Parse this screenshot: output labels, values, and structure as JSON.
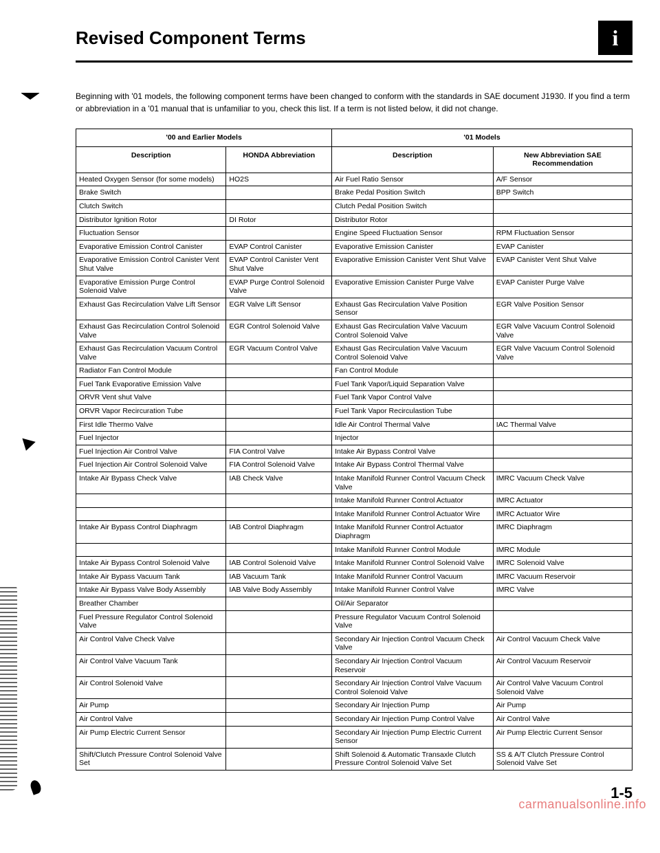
{
  "title": "Revised Component Terms",
  "intro": "Beginning with '01 models, the following component terms have been changed to conform with the standards in SAE document J1930. If you find a term or abbreviation in a '01 manual that is unfamiliar to you, check this list. If a term is not listed below, it did not change.",
  "headers": {
    "group_old": "'00 and Earlier Models",
    "group_new": "'01 Models",
    "old_desc": "Description",
    "old_abbr": "HONDA Abbreviation",
    "new_desc": "Description",
    "new_abbr": "New Abbreviation SAE Recommendation"
  },
  "rows": [
    {
      "a": "Heated Oxygen Sensor (for some models)",
      "b": "HO2S",
      "c": "Air Fuel Ratio Sensor",
      "d": "A/F Sensor"
    },
    {
      "a": "Brake Switch",
      "b": "",
      "c": "Brake Pedal Position Switch",
      "d": "BPP Switch"
    },
    {
      "a": "Clutch Switch",
      "b": "",
      "c": "Clutch Pedal Position Switch",
      "d": ""
    },
    {
      "a": "Distributor Ignition Rotor",
      "b": "DI Rotor",
      "c": "Distributor Rotor",
      "d": ""
    },
    {
      "a": "Fluctuation Sensor",
      "b": "",
      "c": "Engine Speed Fluctuation Sensor",
      "d": "RPM Fluctuation Sensor"
    },
    {
      "a": "Evaporative Emission Control Canister",
      "b": "EVAP Control Canister",
      "c": "Evaporative Emission Canister",
      "d": "EVAP Canister"
    },
    {
      "a": "Evaporative Emission Control Canister Vent Shut Valve",
      "b": "EVAP Control Canister Vent Shut Valve",
      "c": "Evaporative Emission Canister Vent Shut Valve",
      "d": "EVAP Canister Vent Shut Valve"
    },
    {
      "a": "Evaporative Emission Purge Control Solenoid Valve",
      "b": "EVAP Purge Control Solenoid Valve",
      "c": "Evaporative Emission Canister Purge Valve",
      "d": "EVAP Canister Purge Valve"
    },
    {
      "a": "Exhaust Gas Recirculation Valve Lift Sensor",
      "b": "EGR Valve Lift Sensor",
      "c": "Exhaust Gas Recirculation Valve Position Sensor",
      "d": "EGR Valve Position Sensor"
    },
    {
      "a": "Exhaust Gas Recirculation Control Solenoid Valve",
      "b": "EGR Control Solenoid Valve",
      "c": "Exhaust Gas Recirculation Valve Vacuum Control Solenoid Valve",
      "d": "EGR Valve Vacuum Control Solenoid Valve"
    },
    {
      "a": "Exhaust Gas Recirculation Vacuum Control Valve",
      "b": "EGR Vacuum Control Valve",
      "c": "Exhaust Gas Recirculation Valve Vacuum Control Solenoid Valve",
      "d": "EGR Valve Vacuum Control Solenoid Valve"
    },
    {
      "a": "Radiator Fan Control Module",
      "b": "",
      "c": "Fan Control Module",
      "d": ""
    },
    {
      "a": "Fuel Tank Evaporative Emission Valve",
      "b": "",
      "c": "Fuel Tank Vapor/Liquid Separation Valve",
      "d": ""
    },
    {
      "a": "ORVR Vent shut Valve",
      "b": "",
      "c": "Fuel Tank Vapor Control Valve",
      "d": ""
    },
    {
      "a": "ORVR Vapor Recircuration Tube",
      "b": "",
      "c": "Fuel Tank Vapor Recirculastion Tube",
      "d": ""
    },
    {
      "a": "First Idle Thermo Valve",
      "b": "",
      "c": "Idle Air Control Thermal Valve",
      "d": "IAC Thermal Valve"
    },
    {
      "a": "Fuel Injector",
      "b": "",
      "c": "Injector",
      "d": ""
    },
    {
      "a": "Fuel Injection Air Control Valve",
      "b": "FIA Control Valve",
      "c": "Intake Air Bypass Control Valve",
      "d": ""
    },
    {
      "a": "Fuel Injection Air Control Solenoid Valve",
      "b": "FIA Control Solenoid Valve",
      "c": "Intake Air Bypass Control Thermal Valve",
      "d": ""
    },
    {
      "a": "Intake Air Bypass Check Valve",
      "b": "IAB Check Valve",
      "c": "Intake Manifold Runner Control Vacuum Check Valve",
      "d": "IMRC Vacuum Check Valve"
    },
    {
      "a": "",
      "b": "",
      "c": "Intake Manifold Runner Control Actuator",
      "d": "IMRC Actuator"
    },
    {
      "a": "",
      "b": "",
      "c": "Intake Manifold Runner Control Actuator Wire",
      "d": "IMRC Actuator Wire"
    },
    {
      "a": "Intake Air Bypass Control Diaphragm",
      "b": "IAB Control Diaphragm",
      "c": "Intake Manifold Runner Control Actuator Diaphragm",
      "d": "IMRC Diaphragm"
    },
    {
      "a": "",
      "b": "",
      "c": "Intake Manifold Runner Control Module",
      "d": "IMRC Module"
    },
    {
      "a": "Intake Air Bypass Control Solenoid Valve",
      "b": "IAB Control Solenoid Valve",
      "c": "Intake Manifold Runner Control Solenoid Valve",
      "d": "IMRC Solenoid Valve"
    },
    {
      "a": "Intake Air Bypass Vacuum Tank",
      "b": "IAB Vacuum Tank",
      "c": "Intake Manifold Runner Control Vacuum",
      "d": "IMRC Vacuum Reservoir"
    },
    {
      "a": "Intake Air Bypass Valve Body Assembly",
      "b": "IAB Valve Body Assembly",
      "c": "Intake Manifold Runner Control Valve",
      "d": "IMRC Valve"
    },
    {
      "a": "Breather Chamber",
      "b": "",
      "c": "Oil/Air Separator",
      "d": ""
    },
    {
      "a": "Fuel Pressure Regulator Control Solenoid Valve",
      "b": "",
      "c": "Pressure Regulator Vacuum Control Solenoid Valve",
      "d": ""
    },
    {
      "a": "Air Control Valve Check Valve",
      "b": "",
      "c": "Secondary Air Injection Control Vacuum Check Valve",
      "d": "Air Control Vacuum Check Valve"
    },
    {
      "a": "Air Control Valve Vacuum Tank",
      "b": "",
      "c": "Secondary Air Injection Control Vacuum Reservoir",
      "d": "Air Control Vacuum Reservoir"
    },
    {
      "a": "Air Control Solenoid Valve",
      "b": "",
      "c": "Secondary Air Injection Control Valve Vacuum Control Solenoid Valve",
      "d": "Air Control Valve Vacuum Control Solenoid Valve"
    },
    {
      "a": "Air Pump",
      "b": "",
      "c": "Secondary Air Injection Pump",
      "d": "Air Pump"
    },
    {
      "a": "Air Control Valve",
      "b": "",
      "c": "Secondary Air Injection Pump Control Valve",
      "d": "Air Control Valve"
    },
    {
      "a": "Air Pump Electric Current Sensor",
      "b": "",
      "c": "Secondary Air Injection Pump Electric Current Sensor",
      "d": "Air Pump Electric Current Sensor"
    },
    {
      "a": "Shift/Clutch Pressure Control Solenoid Valve Set",
      "b": "",
      "c": "Shift Solenoid & Automatic Transaxle Clutch Pressure Control Solenoid Valve Set",
      "d": "SS & A/T Clutch Pressure Control Solenoid Valve Set"
    }
  ],
  "page_num": "1-5",
  "watermark": "carmanualsonline.info"
}
